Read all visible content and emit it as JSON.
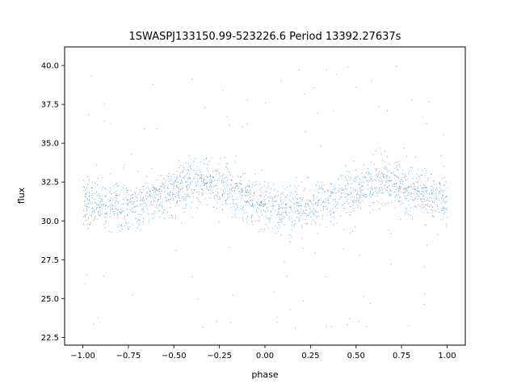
{
  "chart_data": {
    "type": "scatter",
    "title": "1SWASPJ133150.99-523226.6 Period 13392.27637s",
    "xlabel": "phase",
    "ylabel": "flux",
    "xlim": [
      -1.1,
      1.1
    ],
    "ylim": [
      22.0,
      41.2
    ],
    "x_ticks": [
      -1.0,
      -0.75,
      -0.5,
      -0.25,
      0.0,
      0.25,
      0.5,
      0.75,
      1.0
    ],
    "x_tick_labels": [
      "−1.00",
      "−0.75",
      "−0.50",
      "−0.25",
      "0.00",
      "0.25",
      "0.50",
      "0.75",
      "1.00"
    ],
    "y_ticks": [
      22.5,
      25.0,
      27.5,
      30.0,
      32.5,
      35.0,
      37.5,
      40.0
    ],
    "y_tick_labels": [
      "22.5",
      "25.0",
      "27.5",
      "30.0",
      "32.5",
      "35.0",
      "37.5",
      "40.0"
    ],
    "grid": false,
    "marker_color": "#1f77b4",
    "series": [
      {
        "x_range": [
          -1.0,
          1.0
        ],
        "trend_phase": [
          -1.0,
          -0.75,
          -0.5,
          -0.35,
          -0.25,
          0.0,
          0.15,
          0.25,
          0.5,
          0.65,
          0.75,
          1.0
        ],
        "trend_flux": [
          31.3,
          30.9,
          32.0,
          32.6,
          32.3,
          31.0,
          30.8,
          30.9,
          32.0,
          32.6,
          32.3,
          31.3
        ],
        "band_half_width": 2.0,
        "flux_min": 22.9,
        "flux_max": 40.2
      }
    ]
  }
}
